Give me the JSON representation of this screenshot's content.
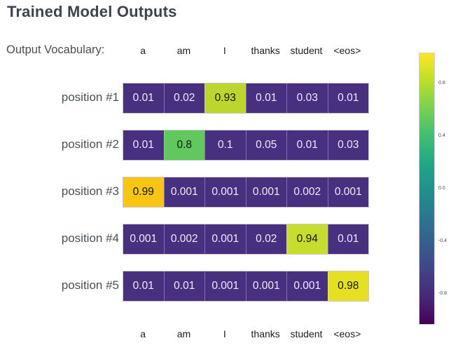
{
  "title": "Trained Model Outputs",
  "vocab_label": "Output Vocabulary:",
  "vocabulary": [
    "a",
    "am",
    "I",
    "thanks",
    "student",
    "<eos>"
  ],
  "rows": [
    {
      "label": "position #1",
      "cells": [
        "0.01",
        "0.02",
        "0.93",
        "0.01",
        "0.03",
        "0.01"
      ],
      "highlight_index": 2,
      "highlight_color": "#bdd62e"
    },
    {
      "label": "position #2",
      "cells": [
        "0.01",
        "0.8",
        "0.1",
        "0.05",
        "0.01",
        "0.03"
      ],
      "highlight_index": 1,
      "highlight_color": "#62c75c"
    },
    {
      "label": "position #3",
      "cells": [
        "0.99",
        "0.001",
        "0.001",
        "0.001",
        "0.002",
        "0.001"
      ],
      "highlight_index": 0,
      "highlight_color": "#f9c513"
    },
    {
      "label": "position #4",
      "cells": [
        "0.001",
        "0.002",
        "0.001",
        "0.02",
        "0.94",
        "0.01"
      ],
      "highlight_index": 4,
      "highlight_color": "#c6dd2d"
    },
    {
      "label": "position #5",
      "cells": [
        "0.01",
        "0.01",
        "0.001",
        "0.001",
        "0.001",
        "0.98"
      ],
      "highlight_index": 5,
      "highlight_color": "#e5e022"
    }
  ],
  "colors": {
    "cell_base": "#483080",
    "cell_text_light": "#efecf7",
    "cell_text_dark": "#15161a",
    "title_text": "#3d444c",
    "label_text": "#4a5056",
    "header_text": "#1c1d1f"
  },
  "colorbar": {
    "gradient": [
      "#fde725",
      "#bddf26",
      "#7ad151",
      "#44bf70",
      "#22a884",
      "#21918c",
      "#2a788e",
      "#355f8d",
      "#414487",
      "#482878",
      "#440154"
    ],
    "ticks": [
      {
        "label": "0.8",
        "value": 0.8
      },
      {
        "label": "0.4",
        "value": 0.4
      },
      {
        "label": "0.0",
        "value": 0.0
      },
      {
        "label": "-0.4",
        "value": -0.4
      },
      {
        "label": "-0.8",
        "value": -0.8
      }
    ]
  },
  "chart_data": {
    "type": "heatmap",
    "title": "Trained Model Outputs",
    "columns": [
      "a",
      "am",
      "I",
      "thanks",
      "student",
      "<eos>"
    ],
    "row_labels": [
      "position #1",
      "position #2",
      "position #3",
      "position #4",
      "position #5"
    ],
    "values": [
      [
        0.01,
        0.02,
        0.93,
        0.01,
        0.03,
        0.01
      ],
      [
        0.01,
        0.8,
        0.1,
        0.05,
        0.01,
        0.03
      ],
      [
        0.99,
        0.001,
        0.001,
        0.001,
        0.002,
        0.001
      ],
      [
        0.001,
        0.002,
        0.001,
        0.02,
        0.94,
        0.01
      ],
      [
        0.01,
        0.01,
        0.001,
        0.001,
        0.001,
        0.98
      ]
    ],
    "colorbar": {
      "colormap": "viridis",
      "range": [
        -1,
        1
      ],
      "tick_labels": [
        "0.8",
        "0.4",
        "0.0",
        "-0.4",
        "-0.8"
      ],
      "position": "right"
    },
    "legend": "none",
    "grid": "off"
  }
}
